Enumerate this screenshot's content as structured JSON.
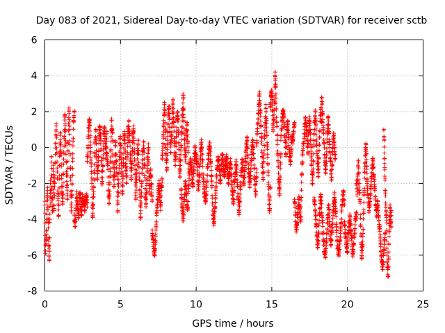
{
  "chart_data": {
    "type": "scatter",
    "title": "Day 083 of 2021, Sidereal Day-to-day VTEC variation (SDTVAR) for receiver sctb",
    "xlabel": "GPS time / hours",
    "ylabel": "SDTVAR / TECUs",
    "xlim": [
      0,
      25
    ],
    "ylim": [
      -8,
      6
    ],
    "xticks": [
      "0",
      "5",
      "10",
      "15",
      "20",
      "25"
    ],
    "yticks": [
      "-8",
      "-6",
      "-4",
      "-2",
      "0",
      "2",
      "4",
      "6"
    ],
    "grid": true,
    "marker": "+",
    "series": [
      {
        "name": "SDTVAR",
        "color": "#ff0000",
        "segments": [
          {
            "x0": 0.0,
            "x1": 0.55,
            "y": [
              -3.0,
              -5.9,
              -5.2,
              -4.6,
              -3.2,
              -2.4,
              -4.1,
              -5.5,
              -6.3,
              -4.0,
              -2.0,
              -3.1,
              -0.5,
              -2.8,
              -3.6,
              -1.2
            ]
          },
          {
            "x0": 0.55,
            "x1": 1.95,
            "y": [
              -1.5,
              -3.4,
              -2.0,
              0.2,
              1.2,
              -0.8,
              -2.6,
              -3.8,
              -1.0,
              0.8,
              -0.3,
              -2.2,
              -3.1,
              -1.5,
              0.6,
              1.8,
              0.4,
              -1.6,
              -2.9,
              -0.2,
              2.2,
              1.0,
              -1.2,
              -3.5,
              -2.4,
              -0.6,
              1.5,
              2.0
            ]
          },
          {
            "x0": 1.95,
            "x1": 2.8,
            "y": [
              -3.8,
              -4.4,
              -3.5,
              -2.6,
              -3.2,
              -3.9,
              -3.0,
              -2.5,
              -3.3,
              -3.8,
              -2.8,
              -3.2,
              -2.9,
              -3.5,
              -3.0,
              -2.7,
              -3.1
            ]
          },
          {
            "x0": 2.8,
            "x1": 4.1,
            "y": [
              -0.8,
              0.0,
              1.2,
              1.5,
              0.3,
              -0.9,
              -2.2,
              -3.9,
              -2.6,
              -1.4,
              0.2,
              1.0,
              -0.5,
              -1.8,
              -1.0,
              0.4,
              1.2,
              0.6,
              -0.8,
              -2.0,
              -1.0,
              0.8,
              1.1,
              0.2,
              -0.6,
              0.9
            ]
          },
          {
            "x0": 4.1,
            "x1": 5.5,
            "y": [
              -0.3,
              -1.0,
              -2.4,
              -3.1,
              -1.6,
              -0.2,
              1.5,
              0.8,
              -0.9,
              -2.2,
              -1.2,
              0.3,
              -0.8,
              -1.6,
              -3.6,
              -2.0,
              -0.5,
              0.6,
              -0.3,
              -1.4,
              -2.6,
              -1.0,
              0.9,
              0.2,
              -1.1,
              -2.0,
              -0.4,
              1.2
            ]
          },
          {
            "x0": 5.5,
            "x1": 7.1,
            "y": [
              0.4,
              1.5,
              0.8,
              -0.6,
              -1.8,
              -0.8,
              0.6,
              1.2,
              -0.2,
              -1.5,
              -2.9,
              -1.6,
              -0.3,
              0.4,
              -1.1,
              -2.4,
              -3.9,
              -2.7,
              -1.2,
              -0.2,
              0.3,
              -1.0,
              -2.3,
              -3.3,
              -2.0,
              -0.8,
              0.0,
              -1.6,
              -2.6,
              -1.2,
              -2.2,
              -3.0
            ]
          },
          {
            "x0": 7.1,
            "x1": 7.75,
            "y": [
              -4.6,
              -5.1,
              -5.6,
              -6.0,
              -5.4,
              -4.4,
              -3.6,
              -3.1,
              -2.5,
              -2.0,
              -2.8,
              -3.3,
              -2.4,
              -1.8
            ]
          },
          {
            "x0": 7.75,
            "x1": 9.5,
            "y": [
              -0.6,
              0.2,
              1.2,
              2.4,
              1.0,
              -0.4,
              -1.2,
              0.4,
              1.8,
              2.2,
              0.9,
              -0.3,
              0.6,
              1.6,
              2.6,
              1.4,
              0.1,
              -1.0,
              0.3,
              1.5,
              2.0,
              0.7,
              -0.6,
              -1.6,
              -0.4,
              0.8,
              1.8,
              2.9,
              1.5,
              0.2,
              -0.8,
              0.6,
              1.4,
              0.3,
              -1.2
            ]
          },
          {
            "x0": 9.0,
            "x1": 10.0,
            "y": [
              -2.4,
              -3.3,
              -4.1,
              -3.0,
              -1.9,
              -2.6,
              -3.5,
              -2.2,
              -1.4,
              -0.6,
              -1.5,
              -2.1,
              -0.9,
              0.1,
              -0.7
            ]
          },
          {
            "x0": 10.0,
            "x1": 12.0,
            "y": [
              -0.4,
              -1.1,
              -2.3,
              -1.5,
              -0.6,
              0.3,
              -0.7,
              -1.8,
              -2.6,
              -3.1,
              -2.2,
              -1.1,
              -0.3,
              0.2,
              -0.8,
              -1.9,
              -3.7,
              -4.2,
              -3.3,
              -2.3,
              -1.2,
              -0.5,
              -1.0,
              -2.0,
              -1.2,
              -0.4,
              -0.9,
              -1.6,
              -1.0,
              -0.5
            ]
          },
          {
            "x0": 12.0,
            "x1": 14.0,
            "y": [
              -0.6,
              -1.2,
              -2.0,
              -1.4,
              -0.8,
              -1.6,
              -2.4,
              -3.0,
              -2.2,
              -1.5,
              -0.8,
              -1.8,
              -2.8,
              -3.6,
              -2.6,
              -1.6,
              -0.7,
              -1.3,
              -2.1,
              -1.0,
              -0.2,
              0.6,
              -0.4,
              -1.4,
              -2.2,
              -1.2,
              -0.3,
              0.3,
              -0.6,
              -1.8,
              -2.6,
              -1.4
            ]
          },
          {
            "x0": 14.0,
            "x1": 14.9,
            "y": [
              0.2,
              0.9,
              1.6,
              2.4,
              3.0,
              2.1,
              1.2,
              0.2,
              -0.9,
              -1.8,
              -0.6,
              0.6,
              1.4,
              2.2,
              1.1,
              -0.1,
              -1.3,
              -2.6,
              -3.6,
              -2.2
            ]
          },
          {
            "x0": 14.9,
            "x1": 15.6,
            "y": [
              2.4,
              2.9,
              3.2,
              2.1,
              1.0,
              1.6,
              2.6,
              4.2,
              3.0,
              1.4,
              0.4,
              -0.8,
              -1.8,
              -2.6,
              -1.6,
              -0.4
            ]
          },
          {
            "x0": 15.6,
            "x1": 16.5,
            "y": [
              0.4,
              1.2,
              1.9,
              2.1,
              1.3,
              0.4,
              -0.4,
              0.8,
              1.5,
              0.6,
              -0.3,
              -0.8,
              -0.2,
              0.6,
              0.2,
              0.8,
              1.4
            ]
          },
          {
            "x0": 16.5,
            "x1": 17.4,
            "y": [
              -3.0,
              -3.8,
              -4.6,
              -4.2,
              -3.4,
              -2.8,
              -3.6,
              -4.0,
              -1.5,
              -0.4,
              0.2,
              0.8,
              1.6,
              1.2,
              0.4,
              -0.3
            ]
          },
          {
            "x0": 17.4,
            "x1": 18.3,
            "y": [
              0.2,
              1.0,
              1.6,
              0.8,
              0.0,
              -1.0,
              -2.0,
              -1.2,
              0.4,
              1.4,
              2.0,
              1.2,
              0.2,
              -0.8,
              -1.6,
              -0.6,
              0.6,
              1.6,
              2.2,
              1.4
            ]
          },
          {
            "x0": 18.3,
            "x1": 19.2,
            "y": [
              2.8,
              2.0,
              1.0,
              0.2,
              -0.8,
              -1.4,
              -0.4,
              0.8,
              1.6,
              0.9,
              0.0,
              -0.8,
              -1.8,
              -1.0,
              0.2,
              0.8,
              0.0,
              -0.6
            ]
          },
          {
            "x0": 17.8,
            "x1": 19.8,
            "y": [
              -2.8,
              -3.6,
              -4.4,
              -5.6,
              -4.8,
              -3.4,
              -2.6,
              -3.8,
              -4.8,
              -5.8,
              -6.1,
              -5.2,
              -4.0,
              -3.2,
              -4.4,
              -5.4,
              -4.6,
              -3.6,
              -2.6,
              -3.4,
              -4.6,
              -5.6,
              -6.0,
              -5.2,
              -4.2,
              -3.2,
              -2.4,
              -3.2
            ]
          },
          {
            "x0": 19.8,
            "x1": 20.6,
            "y": [
              -4.2,
              -4.8,
              -5.4,
              -5.8,
              -5.0,
              -4.4,
              -3.8,
              -4.6,
              -5.2,
              -6.0,
              -5.4,
              -4.6,
              -4.0,
              -3.6
            ]
          },
          {
            "x0": 20.6,
            "x1": 21.3,
            "y": [
              -2.0,
              -2.6,
              -1.6,
              -0.8,
              -1.8,
              -2.4,
              -3.0,
              -4.4,
              -5.4,
              -6.2,
              -5.6,
              -4.8,
              -3.6,
              -2.4,
              -1.2,
              -0.2,
              0.2,
              -0.8,
              -1.8
            ]
          },
          {
            "x0": 21.3,
            "x1": 22.0,
            "y": [
              -2.0,
              -2.8,
              -3.6,
              -3.0,
              -2.2,
              -1.4,
              -0.6,
              -1.6,
              -2.4,
              -3.2,
              -3.8,
              -3.0
            ]
          },
          {
            "x0": 22.0,
            "x1": 22.5,
            "y": [
              -3.0,
              -3.8,
              -4.4,
              -5.0,
              -5.8,
              -6.4,
              -6.6,
              -6.0,
              -5.4,
              -4.8
            ]
          },
          {
            "x0": 22.4,
            "x1": 22.9,
            "y": [
              1.0,
              0.4,
              -0.6,
              -1.6,
              -2.4,
              -3.2,
              -3.8,
              -4.2,
              -5.6,
              -6.4,
              -6.8,
              -7.2,
              -6.2,
              -5.4,
              -4.6,
              -3.8,
              -3.2,
              -4.0,
              -4.4,
              -3.6
            ]
          }
        ]
      }
    ]
  }
}
